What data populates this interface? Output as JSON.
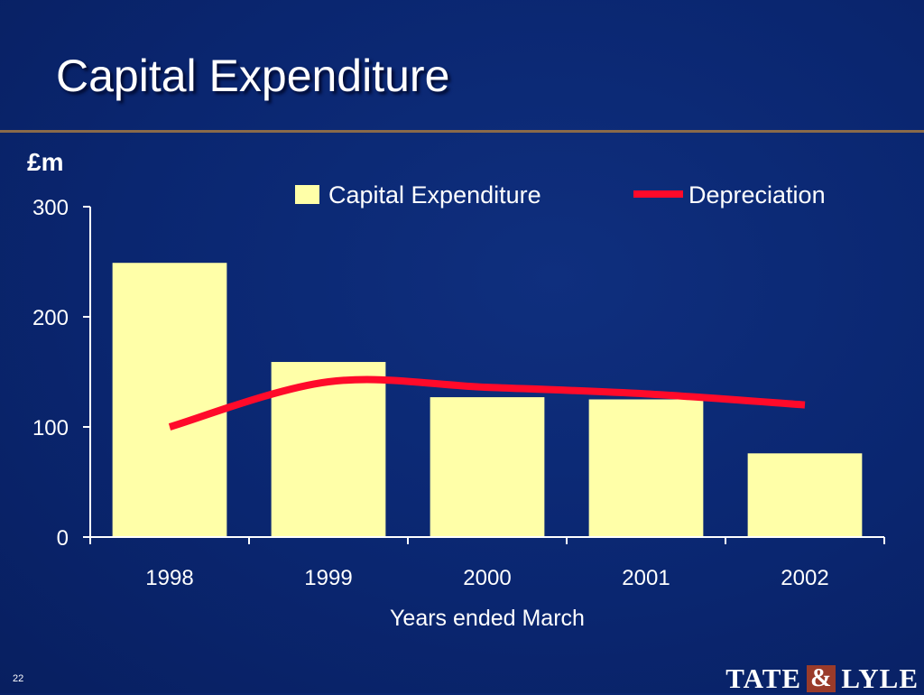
{
  "slide": {
    "title": "Capital Expenditure",
    "unit_label": "£m",
    "slide_number": "22",
    "logo": {
      "left": "TATE",
      "amp": "&",
      "right": "LYLE"
    }
  },
  "colors": {
    "background": "#0a2670",
    "bar": "#ffffa8",
    "line": "#ff0a2a",
    "rule": "#8a6a4a"
  },
  "chart_data": {
    "type": "bar",
    "categories": [
      "1998",
      "1999",
      "2000",
      "2001",
      "2002"
    ],
    "series": [
      {
        "name": "Capital Expenditure",
        "type": "bar",
        "values": [
          249,
          159,
          127,
          125,
          76
        ]
      },
      {
        "name": "Depreciation",
        "type": "line",
        "values": [
          100,
          141,
          136,
          130,
          120
        ]
      }
    ],
    "xlabel": "Years ended March",
    "ylabel": "£m",
    "ylim": [
      0,
      300
    ],
    "yticks": [
      0,
      100,
      200,
      300
    ],
    "legend": "top",
    "grid": false
  }
}
